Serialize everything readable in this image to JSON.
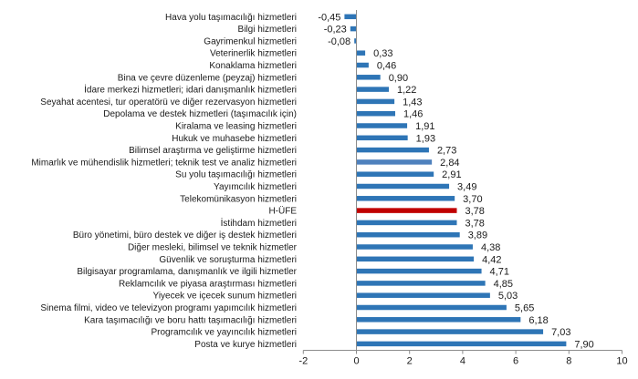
{
  "chart_data": {
    "type": "bar",
    "orientation": "horizontal",
    "title": "",
    "xlabel": "",
    "ylabel": "",
    "xlim": [
      -2,
      10
    ],
    "xticks": [
      "-2",
      "0",
      "2",
      "4",
      "6",
      "8",
      "10"
    ],
    "xtick_values": [
      -2,
      0,
      2,
      4,
      6,
      8,
      10
    ],
    "grid": false,
    "legend": "none",
    "decimal_separator": ",",
    "colors": {
      "default": "#2e75b6",
      "highlight_total": "#c00000",
      "highlight_alt": "#4f81bd",
      "axis": "#8c8c8c"
    },
    "categories": [
      "Hava yolu taşımacılığı hizmetleri",
      "Bilgi hizmetleri",
      "Gayrimenkul hizmetleri",
      "Veterinerlik hizmetleri",
      "Konaklama hizmetleri",
      "Bina ve çevre düzenleme (peyzaj) hizmetleri",
      "İdare merkezi hizmetleri; idari danışmanlık hizmetleri",
      "Seyahat acentesi, tur operatörü ve diğer rezervasyon hizmetleri",
      "Depolama ve destek hizmetleri (taşımacılık için)",
      "Kiralama ve leasing hizmetleri",
      "Hukuk ve muhasebe hizmetleri",
      "Bilimsel araştırma ve geliştirme hizmetleri",
      "Mimarlık ve mühendislik hizmetleri; teknik test ve analiz hizmetleri",
      "Su yolu taşımacılığı hizmetleri",
      "Yayımcılık hizmetleri",
      "Telekomünikasyon hizmetleri",
      "H-ÜFE",
      "İstihdam hizmetleri",
      "Büro yönetimi, büro destek ve diğer iş destek hizmetleri",
      "Diğer mesleki, bilimsel ve teknik hizmetler",
      "Güvenlik ve soruşturma hizmetleri",
      "Bilgisayar programlama, danışmanlık ve ilgili hizmetler",
      "Reklamcılık ve piyasa araştırması hizmetleri",
      "Yiyecek ve içecek sunum hizmetleri",
      "Sinema filmi, video ve televizyon programı yapımcılık hizmetleri",
      "Kara taşımacılığı ve boru hattı taşımacılığı hizmetleri",
      "Programcılık ve yayıncılık hizmetleri",
      "Posta ve kurye hizmetleri"
    ],
    "values": [
      -0.45,
      -0.23,
      -0.08,
      0.33,
      0.46,
      0.9,
      1.22,
      1.43,
      1.46,
      1.91,
      1.93,
      2.73,
      2.84,
      2.91,
      3.49,
      3.7,
      3.78,
      3.78,
      3.89,
      4.38,
      4.42,
      4.71,
      4.85,
      5.03,
      5.65,
      6.18,
      7.03,
      7.9
    ],
    "value_labels": [
      "-0,45",
      "-0,23",
      "-0,08",
      "0,33",
      "0,46",
      "0,90",
      "1,22",
      "1,43",
      "1,46",
      "1,91",
      "1,93",
      "2,73",
      "2,84",
      "2,91",
      "3,49",
      "3,70",
      "3,78",
      "3,78",
      "3,89",
      "4,38",
      "4,42",
      "4,71",
      "4,85",
      "5,03",
      "5,65",
      "6,18",
      "7,03",
      "7,90"
    ],
    "highlights": {
      "H-ÜFE": "highlight_total",
      "Mimarlık ve mühendislik hizmetleri; teknik test ve analiz hizmetleri": "highlight_alt"
    }
  }
}
